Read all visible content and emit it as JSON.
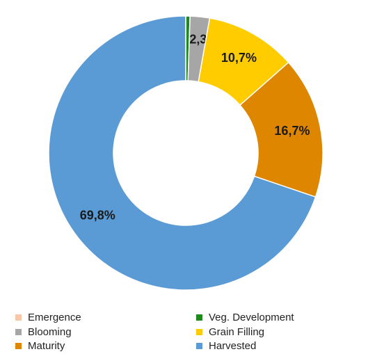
{
  "chart_data": {
    "type": "pie",
    "donut": true,
    "categories": [
      "Emergence",
      "Veg. Development",
      "Blooming",
      "Grain Filling",
      "Maturity",
      "Harvested"
    ],
    "values": [
      0.0,
      0.5,
      2.3,
      10.7,
      16.7,
      69.8
    ],
    "data_labels": [
      "",
      "",
      "2,3%",
      "10,7%",
      "16,7%",
      "69,8%"
    ],
    "colors": [
      "#f8c7a7",
      "#1e8a1e",
      "#a6a6a6",
      "#ffcc00",
      "#df8600",
      "#5b9bd5"
    ],
    "legend_position": "bottom",
    "legend": [
      {
        "label": "Emergence",
        "color": "#f8c7a7"
      },
      {
        "label": "Veg. Development",
        "color": "#1e8a1e"
      },
      {
        "label": "Blooming",
        "color": "#a6a6a6"
      },
      {
        "label": "Grain Filling",
        "color": "#ffcc00"
      },
      {
        "label": "Maturity",
        "color": "#df8600"
      },
      {
        "label": "Harvested",
        "color": "#5b9bd5"
      }
    ]
  }
}
